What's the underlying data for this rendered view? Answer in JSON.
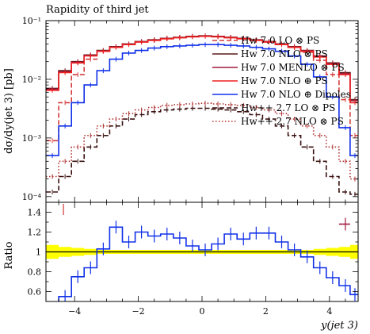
{
  "chart_data": [
    {
      "panel": "main",
      "type": "line",
      "title": "Rapidity of third jet",
      "ylabel": "dσ/dy(jet 3) [pb]",
      "yscale": "log",
      "ylim": [
        8e-05,
        0.1
      ],
      "xlim": [
        -4.9,
        4.9
      ],
      "yticks": [
        {
          "value": 0.1,
          "label": "10⁻¹"
        },
        {
          "value": 0.01,
          "label": "10⁻²"
        },
        {
          "value": 0.001,
          "label": "10⁻³"
        },
        {
          "value": 0.0001,
          "label": "10⁻⁴"
        }
      ],
      "legend_position": "top-right",
      "x": [
        -4.7,
        -4.3,
        -3.9,
        -3.5,
        -3.1,
        -2.7,
        -2.3,
        -1.9,
        -1.5,
        -1.1,
        -0.7,
        -0.3,
        0.1,
        0.5,
        0.9,
        1.3,
        1.7,
        2.1,
        2.5,
        2.9,
        3.3,
        3.7,
        4.1,
        4.5,
        4.8
      ],
      "series": [
        {
          "name": "Hw 7.0 LO ⊗ PS",
          "color": "#d43b3b",
          "dash": "dashed",
          "values": [
            0.0009,
            0.004,
            0.012,
            0.022,
            0.03,
            0.036,
            0.04,
            0.044,
            0.047,
            0.05,
            0.052,
            0.054,
            0.055,
            0.054,
            0.052,
            0.05,
            0.047,
            0.044,
            0.04,
            0.035,
            0.029,
            0.021,
            0.012,
            0.0045,
            0.0011
          ]
        },
        {
          "name": "Hw 7.0 NLO ⊗ PS",
          "color": "#5a1a1a",
          "dash": "solid",
          "values": [
            0.007,
            0.014,
            0.02,
            0.026,
            0.031,
            0.036,
            0.04,
            0.044,
            0.047,
            0.05,
            0.052,
            0.054,
            0.055,
            0.054,
            0.052,
            0.05,
            0.047,
            0.044,
            0.04,
            0.036,
            0.031,
            0.025,
            0.019,
            0.013,
            0.0045
          ]
        },
        {
          "name": "Hw 7.0 MENLO ⊗ PS",
          "color": "#a01b3c",
          "dash": "solid",
          "values": [
            0.0068,
            0.0135,
            0.0195,
            0.0255,
            0.0305,
            0.0355,
            0.0395,
            0.0435,
            0.0465,
            0.0495,
            0.0515,
            0.0535,
            0.0545,
            0.0535,
            0.0515,
            0.0495,
            0.0465,
            0.0435,
            0.0395,
            0.0355,
            0.0305,
            0.0245,
            0.0185,
            0.0125,
            0.0043
          ]
        },
        {
          "name": "Hw 7.0 NLO ⊕ PS",
          "color": "#ee2020",
          "dash": "solid",
          "values": [
            0.0065,
            0.013,
            0.019,
            0.025,
            0.03,
            0.035,
            0.039,
            0.043,
            0.046,
            0.049,
            0.051,
            0.053,
            0.054,
            0.053,
            0.051,
            0.049,
            0.046,
            0.043,
            0.039,
            0.035,
            0.03,
            0.024,
            0.018,
            0.012,
            0.004
          ]
        },
        {
          "name": "Hw 7.0 NLO ⊕ Dipoles",
          "color": "#1030e8",
          "dash": "solid",
          "values": [
            0.0005,
            0.0016,
            0.004,
            0.008,
            0.014,
            0.022,
            0.028,
            0.031,
            0.034,
            0.036,
            0.037,
            0.038,
            0.039,
            0.039,
            0.038,
            0.037,
            0.035,
            0.033,
            0.03,
            0.025,
            0.018,
            0.011,
            0.005,
            0.0015,
            0.0005
          ]
        },
        {
          "name": "Hw++ 2.7 LO ⊗ PS",
          "color": "#3a1010",
          "dash": "dashed",
          "values": [
            0.00012,
            0.00022,
            0.0004,
            0.0007,
            0.0011,
            0.0016,
            0.0021,
            0.0025,
            0.0028,
            0.003,
            0.0031,
            0.0032,
            0.0032,
            0.0031,
            0.003,
            0.0028,
            0.0025,
            0.0021,
            0.0016,
            0.0011,
            0.0007,
            0.0004,
            0.00022,
            0.00012,
            0.00011
          ]
        },
        {
          "name": "Hw++ 2.7 NLO ⊗ PS",
          "color": "#b03030",
          "dash": "dotted",
          "values": [
            0.00022,
            0.0004,
            0.0007,
            0.0011,
            0.0016,
            0.0021,
            0.0026,
            0.003,
            0.0033,
            0.0036,
            0.0037,
            0.0038,
            0.0039,
            0.0038,
            0.0037,
            0.0036,
            0.0033,
            0.003,
            0.0026,
            0.0021,
            0.0016,
            0.0011,
            0.0007,
            0.0004,
            0.0002
          ]
        }
      ]
    },
    {
      "panel": "ratio",
      "type": "line",
      "ylabel": "Ratio",
      "xlabel": "y(jet 3)",
      "ylim": [
        0.5,
        1.5
      ],
      "xlim": [
        -4.9,
        4.9
      ],
      "yticks": [
        {
          "value": 0.6,
          "label": "0.6"
        },
        {
          "value": 0.8,
          "label": "0.8"
        },
        {
          "value": 1.0,
          "label": "1"
        },
        {
          "value": 1.2,
          "label": "1.2"
        },
        {
          "value": 1.4,
          "label": "1.4"
        }
      ],
      "xticks": [
        {
          "value": -4,
          "label": "−4"
        },
        {
          "value": -2,
          "label": "−2"
        },
        {
          "value": 0,
          "label": "0"
        },
        {
          "value": 2,
          "label": "2"
        },
        {
          "value": 4,
          "label": "4"
        }
      ],
      "reference_band_color": "#ffff00",
      "reference_band_halfwidth": [
        0.07,
        0.05,
        0.04,
        0.03,
        0.02,
        0.02,
        0.02,
        0.02,
        0.02,
        0.02,
        0.02,
        0.02,
        0.02,
        0.02,
        0.02,
        0.02,
        0.02,
        0.02,
        0.02,
        0.02,
        0.02,
        0.03,
        0.04,
        0.05,
        0.07
      ],
      "x": [
        -4.7,
        -4.3,
        -3.9,
        -3.5,
        -3.1,
        -2.7,
        -2.3,
        -1.9,
        -1.5,
        -1.1,
        -0.7,
        -0.3,
        0.1,
        0.5,
        0.9,
        1.3,
        1.7,
        2.1,
        2.5,
        2.9,
        3.3,
        3.7,
        4.1,
        4.5,
        4.8
      ],
      "series": [
        {
          "name": "Hw 7.0 NLO ⊕ Dipoles",
          "color": "#1030e8",
          "values": [
            0.3,
            0.55,
            0.75,
            0.84,
            1.03,
            1.25,
            1.1,
            1.2,
            1.16,
            1.18,
            1.14,
            1.06,
            1.02,
            1.08,
            1.18,
            1.13,
            1.19,
            1.19,
            1.1,
            1.02,
            0.95,
            0.84,
            0.74,
            0.66,
            0.57
          ]
        },
        {
          "name": "Hw 7.0 MENLO ⊗ PS",
          "color": "#a01b3c",
          "values": [
            null,
            null,
            null,
            null,
            null,
            null,
            null,
            null,
            null,
            null,
            null,
            null,
            null,
            null,
            null,
            null,
            null,
            null,
            null,
            null,
            null,
            null,
            null,
            1.28,
            null
          ]
        }
      ]
    }
  ]
}
